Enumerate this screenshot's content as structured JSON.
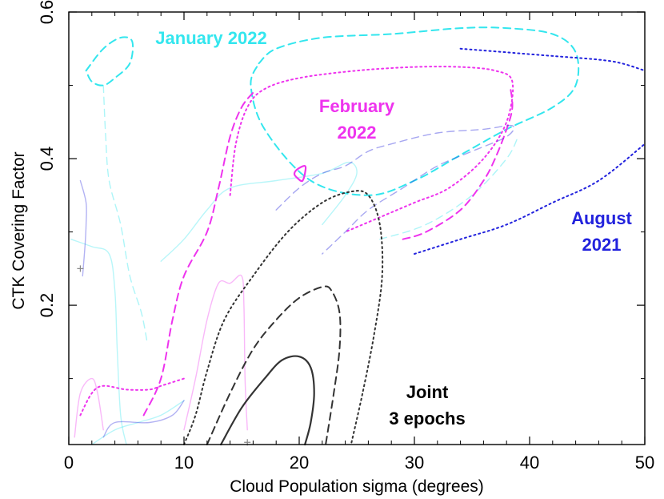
{
  "chart_data": {
    "type": "contour",
    "xlabel": "Cloud Population sigma (degrees)",
    "ylabel": "CTK Covering Factor",
    "xlim": [
      0,
      50
    ],
    "ylim": [
      0.01,
      0.6
    ],
    "x_ticks": [
      0,
      10,
      20,
      30,
      40,
      50
    ],
    "y_ticks": [
      0.2,
      0.4,
      0.6
    ],
    "colors": {
      "january_2022": "#33e6ee",
      "february_2022": "#ee33ee",
      "august_2021": "#2222dd",
      "joint": "#333333",
      "axes": "#000000"
    },
    "series": [
      {
        "name": "January 2022",
        "color": "#33e6ee",
        "contours": [
          {
            "style": "dashed",
            "points": [
              [
                16.5,
                0.53
              ],
              [
                18,
                0.55
              ],
              [
                22,
                0.565
              ],
              [
                28,
                0.57
              ],
              [
                34,
                0.578
              ],
              [
                38,
                0.578
              ],
              [
                42,
                0.57
              ],
              [
                44,
                0.545
              ],
              [
                44,
                0.5
              ],
              [
                42,
                0.47
              ],
              [
                38,
                0.44
              ],
              [
                34,
                0.405
              ],
              [
                30,
                0.37
              ],
              [
                26,
                0.35
              ],
              [
                21,
                0.37
              ],
              [
                17,
                0.44
              ],
              [
                15.8,
                0.5
              ],
              [
                16.5,
                0.53
              ]
            ]
          },
          {
            "style": "dashed",
            "points": [
              [
                1.5,
                0.52
              ],
              [
                3,
                0.55
              ],
              [
                4.5,
                0.565
              ],
              [
                5.5,
                0.56
              ],
              [
                5.3,
                0.53
              ],
              [
                4,
                0.51
              ],
              [
                3,
                0.5
              ],
              [
                2,
                0.505
              ],
              [
                1.5,
                0.52
              ]
            ]
          },
          {
            "style": "dashed-faint",
            "points": [
              [
                3,
                0.5
              ],
              [
                3.2,
                0.43
              ],
              [
                3.5,
                0.37
              ],
              [
                4.5,
                0.31
              ],
              [
                5.3,
                0.24
              ],
              [
                6.3,
                0.19
              ],
              [
                6.8,
                0.15
              ]
            ]
          },
          {
            "style": "dashed-faint",
            "points": [
              [
                27,
                0.29
              ],
              [
                31,
                0.31
              ],
              [
                35,
                0.35
              ],
              [
                38,
                0.4
              ],
              [
                39,
                0.43
              ]
            ]
          },
          {
            "style": "solid-faint",
            "points": [
              [
                0.2,
                0.29
              ],
              [
                2,
                0.28
              ],
              [
                3.5,
                0.27
              ],
              [
                4,
                0.22
              ],
              [
                4.2,
                0.14
              ],
              [
                4.5,
                0.05
              ],
              [
                5,
                0.01
              ]
            ]
          },
          {
            "style": "solid-faint",
            "points": [
              [
                8,
                0.26
              ],
              [
                10,
                0.29
              ],
              [
                12,
                0.33
              ],
              [
                14,
                0.36
              ],
              [
                18,
                0.37
              ],
              [
                22,
                0.38
              ],
              [
                24.3,
                0.395
              ],
              [
                25,
                0.38
              ],
              [
                24,
                0.35
              ],
              [
                22,
                0.31
              ]
            ]
          },
          {
            "style": "solid-faint",
            "points": [
              [
                2,
                0.01
              ],
              [
                4,
                0.03
              ],
              [
                6,
                0.04
              ],
              [
                8,
                0.05
              ],
              [
                10,
                0.07
              ]
            ]
          }
        ]
      },
      {
        "name": "February 2022",
        "color": "#ee33ee",
        "contours": [
          {
            "style": "dotted",
            "points": [
              [
                14,
                0.35
              ],
              [
                14.5,
                0.42
              ],
              [
                15.5,
                0.47
              ],
              [
                17,
                0.495
              ],
              [
                20,
                0.51
              ],
              [
                25,
                0.52
              ],
              [
                30,
                0.525
              ],
              [
                34,
                0.525
              ],
              [
                37,
                0.52
              ],
              [
                38.5,
                0.505
              ],
              [
                38,
                0.45
              ],
              [
                36,
                0.4
              ],
              [
                33,
                0.36
              ],
              [
                30,
                0.34
              ],
              [
                27,
                0.32
              ],
              [
                24,
                0.3
              ]
            ]
          },
          {
            "style": "dashed",
            "points": [
              [
                6.5,
                0.05
              ],
              [
                8,
                0.1
              ],
              [
                9,
                0.18
              ],
              [
                10,
                0.24
              ],
              [
                12,
                0.3
              ],
              [
                13,
                0.36
              ],
              [
                14,
                0.43
              ],
              [
                15,
                0.47
              ],
              [
                16,
                0.49
              ]
            ]
          },
          {
            "style": "dashed",
            "points": [
              [
                29,
                0.29
              ],
              [
                31,
                0.3
              ],
              [
                34,
                0.33
              ],
              [
                36,
                0.37
              ],
              [
                37,
                0.4
              ],
              [
                38,
                0.44
              ],
              [
                38.5,
                0.47
              ],
              [
                38.3,
                0.5
              ]
            ]
          },
          {
            "style": "dotted",
            "points": [
              [
                1,
                0.05
              ],
              [
                2,
                0.08
              ],
              [
                3,
                0.09
              ],
              [
                5,
                0.085
              ],
              [
                7,
                0.085
              ],
              [
                8,
                0.09
              ],
              [
                10,
                0.1
              ]
            ]
          },
          {
            "style": "solid",
            "points": [
              [
                20.1,
                0.37
              ],
              [
                19.6,
                0.378
              ],
              [
                19.8,
                0.385
              ],
              [
                20.5,
                0.39
              ],
              [
                20.5,
                0.38
              ],
              [
                20.3,
                0.37
              ],
              [
                20.1,
                0.37
              ]
            ]
          },
          {
            "style": "solid-faint",
            "points": [
              [
                10,
                0.03
              ],
              [
                11,
                0.1
              ],
              [
                12,
                0.18
              ],
              [
                13,
                0.23
              ],
              [
                14,
                0.23
              ],
              [
                15,
                0.24
              ],
              [
                15.2,
                0.2
              ],
              [
                15.3,
                0.1
              ],
              [
                15.5,
                0.03
              ]
            ]
          },
          {
            "style": "solid-faint",
            "points": [
              [
                0.5,
                0.02
              ],
              [
                1,
                0.08
              ],
              [
                2,
                0.1
              ],
              [
                2.5,
                0.08
              ],
              [
                3,
                0.03
              ]
            ]
          }
        ]
      },
      {
        "name": "August 2021",
        "color": "#2222dd",
        "contours": [
          {
            "style": "dotted",
            "points": [
              [
                34,
                0.55
              ],
              [
                38,
                0.545
              ],
              [
                42,
                0.54
              ],
              [
                46,
                0.535
              ],
              [
                48,
                0.53
              ],
              [
                50,
                0.52
              ]
            ]
          },
          {
            "style": "dotted",
            "points": [
              [
                30,
                0.27
              ],
              [
                34,
                0.29
              ],
              [
                38,
                0.31
              ],
              [
                42,
                0.34
              ],
              [
                46,
                0.37
              ],
              [
                50,
                0.42
              ]
            ]
          },
          {
            "style": "dashed-faint",
            "points": [
              [
                18,
                0.33
              ],
              [
                20,
                0.36
              ],
              [
                22,
                0.38
              ],
              [
                24,
                0.39
              ],
              [
                26,
                0.41
              ],
              [
                28,
                0.42
              ],
              [
                32,
                0.435
              ],
              [
                36,
                0.44
              ],
              [
                38.5,
                0.445
              ],
              [
                38,
                0.43
              ],
              [
                35,
                0.41
              ],
              [
                32,
                0.39
              ],
              [
                29,
                0.36
              ],
              [
                26,
                0.33
              ],
              [
                24,
                0.3
              ],
              [
                22,
                0.27
              ]
            ]
          },
          {
            "style": "solid-faint",
            "points": [
              [
                1,
                0.37
              ],
              [
                1.5,
                0.34
              ],
              [
                1.5,
                0.31
              ],
              [
                1.4,
                0.28
              ],
              [
                1.2,
                0.24
              ]
            ]
          },
          {
            "style": "solid-faint",
            "points": [
              [
                3,
                0.02
              ],
              [
                4,
                0.04
              ],
              [
                7,
                0.04
              ],
              [
                9,
                0.05
              ],
              [
                10,
                0.07
              ]
            ]
          }
        ]
      },
      {
        "name": "Joint 3 epochs",
        "color": "#333333",
        "contours": [
          {
            "style": "solid",
            "points": [
              [
                13.2,
                0.01
              ],
              [
                15,
                0.06
              ],
              [
                17,
                0.1
              ],
              [
                18.5,
                0.125
              ],
              [
                20,
                0.13
              ],
              [
                21,
                0.115
              ],
              [
                21.3,
                0.08
              ],
              [
                21,
                0.04
              ],
              [
                20.5,
                0.01
              ]
            ]
          },
          {
            "style": "dashed",
            "points": [
              [
                12,
                0.01
              ],
              [
                14,
                0.08
              ],
              [
                16,
                0.14
              ],
              [
                18,
                0.18
              ],
              [
                20,
                0.21
              ],
              [
                22,
                0.225
              ],
              [
                22.8,
                0.22
              ],
              [
                23.5,
                0.19
              ],
              [
                23.5,
                0.14
              ],
              [
                23,
                0.08
              ],
              [
                22.3,
                0.01
              ]
            ]
          },
          {
            "style": "dotted",
            "points": [
              [
                10,
                0.01
              ],
              [
                11,
                0.05
              ],
              [
                12,
                0.11
              ],
              [
                13.5,
                0.18
              ],
              [
                16,
                0.24
              ],
              [
                19,
                0.3
              ],
              [
                22,
                0.34
              ],
              [
                24.5,
                0.355
              ],
              [
                26,
                0.35
              ],
              [
                27,
                0.31
              ],
              [
                27.2,
                0.24
              ],
              [
                26.5,
                0.16
              ],
              [
                25.5,
                0.08
              ],
              [
                24.5,
                0.01
              ]
            ]
          }
        ]
      }
    ],
    "annotations": [
      {
        "text": "January 2022",
        "x": 12.5,
        "y": 0.56,
        "color": "#33e6ee"
      },
      {
        "text": "February 2022",
        "x": 27,
        "y": 0.44,
        "color": "#ee33ee"
      },
      {
        "text": "August 2021",
        "x": 47.5,
        "y": 0.3,
        "color": "#2222dd"
      },
      {
        "text": "Joint 3 epochs",
        "x": 31,
        "y": 0.055,
        "color": "#000000"
      }
    ]
  },
  "labels": {
    "annot_jan": "January 2022",
    "annot_feb_1": "February",
    "annot_feb_2": "2022",
    "annot_aug_1": "August",
    "annot_aug_2": "2021",
    "annot_joint_1": "Joint",
    "annot_joint_2": "3 epochs"
  }
}
